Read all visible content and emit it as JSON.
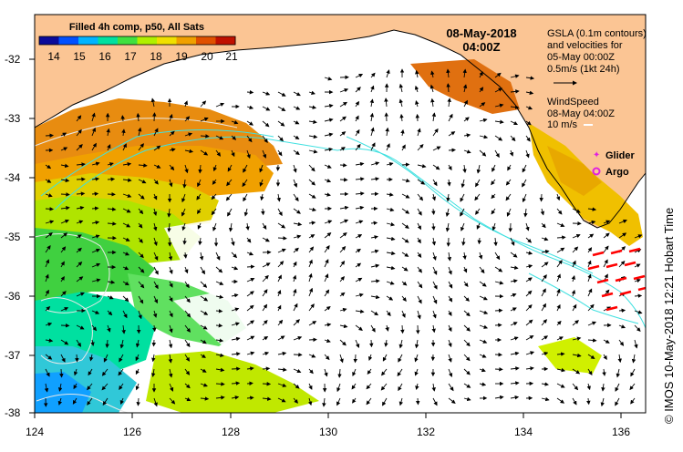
{
  "colorbar": {
    "title": "Filled 4h comp, p50, All Sats",
    "ticks": [
      "14",
      "15",
      "16",
      "17",
      "18",
      "19",
      "20",
      "21"
    ],
    "colors": [
      "#0a0a9a",
      "#0050ff",
      "#00b4ff",
      "#00e0a0",
      "#40e040",
      "#b0f000",
      "#f0e000",
      "#f0a000",
      "#e05000",
      "#c01000"
    ]
  },
  "date_line1": "08-May-2018",
  "date_line2": "04:00Z",
  "gsla": {
    "line1": "GSLA (0.1m contours)",
    "line2": "and velocities for",
    "line3": "05-May 00:00Z",
    "line4": "0.5m/s (1kt 24h)"
  },
  "wind": {
    "line1": "WindSpeed",
    "line2": "08-May 04:00Z",
    "line3": "10 m/s"
  },
  "legend": {
    "glider_label": "Glider",
    "argo_label": "Argo",
    "glider_color": "#e020e0",
    "argo_color": "#e020e0"
  },
  "axes": {
    "x_ticks": [
      "124",
      "126",
      "128",
      "130",
      "132",
      "134",
      "136"
    ],
    "y_ticks": [
      "-32",
      "-33",
      "-34",
      "-35",
      "-36",
      "-37",
      "-38"
    ]
  },
  "credit": "© IMOS 10-May-2018 12:21 Hobart Time",
  "colors": {
    "land": "#fbc594",
    "sea": "#ffffff",
    "contour": "#40e0e0",
    "vector": "#000000",
    "wind_vector": "#ff0000"
  }
}
